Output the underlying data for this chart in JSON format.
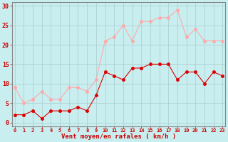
{
  "x": [
    0,
    1,
    2,
    3,
    4,
    5,
    6,
    7,
    8,
    9,
    10,
    11,
    12,
    13,
    14,
    15,
    16,
    17,
    18,
    19,
    20,
    21,
    22,
    23
  ],
  "wind_avg": [
    2,
    2,
    3,
    1,
    3,
    3,
    3,
    4,
    3,
    7,
    13,
    12,
    11,
    14,
    14,
    15,
    15,
    15,
    11,
    13,
    13,
    10,
    13,
    12
  ],
  "wind_gust": [
    9,
    5,
    6,
    8,
    6,
    6,
    9,
    9,
    8,
    11,
    21,
    22,
    25,
    21,
    26,
    26,
    27,
    27,
    29,
    22,
    24,
    21,
    21,
    21
  ],
  "xlabel": "Vent moyen/en rafales ( km/h )",
  "ylabel_ticks": [
    0,
    5,
    10,
    15,
    20,
    25,
    30
  ],
  "xlim": [
    -0.3,
    23.3
  ],
  "ylim": [
    -1,
    31
  ],
  "bg_color": "#c8eef0",
  "grid_color": "#aacccc",
  "avg_color": "#dd0000",
  "gust_color": "#ffaaaa",
  "marker_size": 2.5,
  "line_width": 0.8,
  "tick_color": "#cc0000",
  "spine_color": "#888888",
  "xlabel_fontsize": 6.5,
  "ytick_fontsize": 6,
  "xtick_fontsize": 5
}
